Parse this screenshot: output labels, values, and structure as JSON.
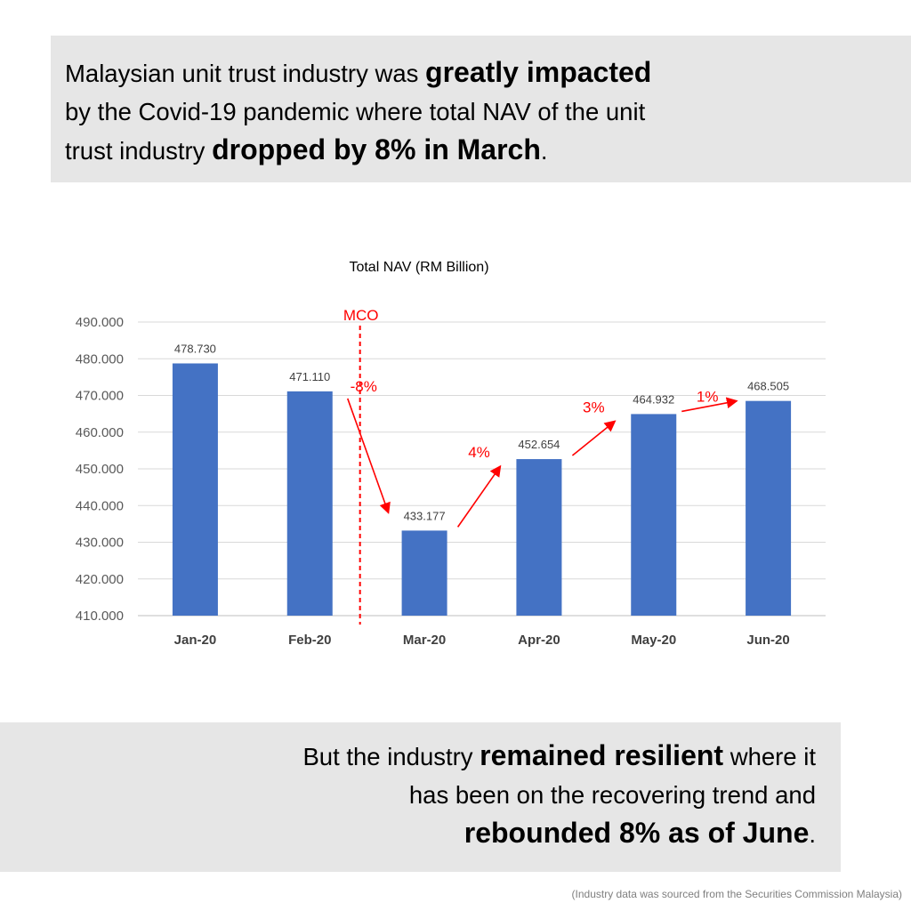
{
  "headline": {
    "part1": "Malaysian unit trust industry was ",
    "bold1": "greatly impacted",
    "part2": "by the Covid-19 pandemic where total NAV of the unit",
    "part3": "trust industry ",
    "bold2": "dropped by 8% in March",
    "part4": "."
  },
  "conclusion": {
    "part1": "But the industry ",
    "bold1": "remained resilient",
    "part2": " where it",
    "part3": "has been on the recovering trend and",
    "bold2": "rebounded 8% as of June",
    "part4": "."
  },
  "source_note": "(Industry data was sourced from the Securities Commission Malaysia)",
  "chart_data": {
    "type": "bar",
    "title": "Total NAV  (RM Billion)",
    "categories": [
      "Jan-20",
      "Feb-20",
      "Mar-20",
      "Apr-20",
      "May-20",
      "Jun-20"
    ],
    "values": [
      478.73,
      471.11,
      433.177,
      452.654,
      464.932,
      468.505
    ],
    "value_labels": [
      "478.730",
      "471.110",
      "433.177",
      "452.654",
      "464.932",
      "468.505"
    ],
    "ylim": [
      410,
      490
    ],
    "yticks": [
      410,
      420,
      430,
      440,
      450,
      460,
      470,
      480,
      490
    ],
    "ytick_labels": [
      "410.000",
      "420.000",
      "430.000",
      "440.000",
      "450.000",
      "460.000",
      "470.000",
      "480.000",
      "490.000"
    ],
    "grid": true,
    "bar_color": "#4472c4",
    "annotation_color": "#ff0000",
    "event_marker": {
      "label": "MCO",
      "between": [
        "Feb-20",
        "Mar-20"
      ]
    },
    "changes": [
      {
        "from": "Feb-20",
        "to": "Mar-20",
        "label": "-8%"
      },
      {
        "from": "Mar-20",
        "to": "Apr-20",
        "label": "4%"
      },
      {
        "from": "Apr-20",
        "to": "May-20",
        "label": "3%"
      },
      {
        "from": "May-20",
        "to": "Jun-20",
        "label": "1%"
      }
    ]
  }
}
